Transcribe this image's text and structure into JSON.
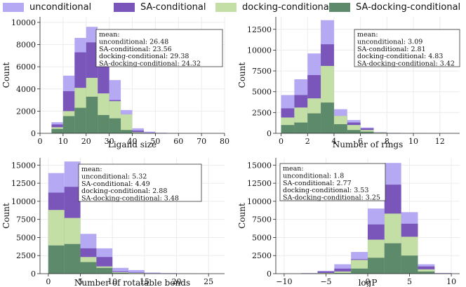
{
  "legend": {
    "items": [
      {
        "label": "unconditional",
        "color": "#b4a9f2"
      },
      {
        "label": "SA-conditional",
        "color": "#7a56bb"
      },
      {
        "label": "docking-conditional",
        "color": "#c4dfa6"
      },
      {
        "label": "SA-docking-conditional",
        "color": "#5e8a6c"
      }
    ]
  },
  "chart_data": [
    {
      "type": "bar",
      "title": "",
      "xlabel": "Ligand size",
      "ylabel": "Count",
      "xlim": [
        0,
        80
      ],
      "ylim": [
        0,
        10500
      ],
      "xticks": [
        0,
        10,
        20,
        30,
        40,
        50,
        60,
        70,
        80
      ],
      "yticks": [
        0,
        2000,
        4000,
        6000,
        8000,
        10000
      ],
      "bin_edges": [
        5,
        10,
        15,
        20,
        25,
        30,
        35,
        40,
        45,
        50,
        55,
        60,
        65
      ],
      "series": [
        {
          "name": "unconditional",
          "values": [
            1000,
            5200,
            8600,
            9600,
            7500,
            4800,
            2100,
            450,
            150,
            50,
            20,
            10
          ]
        },
        {
          "name": "SA-conditional",
          "values": [
            800,
            3800,
            7300,
            8200,
            7000,
            3000,
            800,
            250,
            50,
            20,
            5,
            0
          ]
        },
        {
          "name": "docking-conditional",
          "values": [
            550,
            2000,
            4100,
            5000,
            3600,
            2900,
            1700,
            100,
            20,
            5,
            0,
            0
          ]
        },
        {
          "name": "SA-docking-conditional",
          "values": [
            400,
            1550,
            2300,
            3300,
            1650,
            1350,
            300,
            50,
            10,
            0,
            0,
            0
          ]
        }
      ],
      "annotation": {
        "title": "mean:",
        "lines": [
          "unconditional: 26.48",
          "SA-conditional: 23.56",
          "docking-conditional: 29.38",
          "SA-docking-conditional: 24.32"
        ]
      }
    },
    {
      "type": "bar",
      "title": "",
      "xlabel": "Number of rings",
      "ylabel": "Count",
      "xlim": [
        -0.4,
        13.5
      ],
      "ylim": [
        0,
        14000
      ],
      "xticks": [
        0,
        2,
        4,
        6,
        8,
        10,
        12
      ],
      "yticks": [
        0,
        2500,
        5000,
        7500,
        10000,
        12500
      ],
      "bin_edges": [
        0,
        1,
        2,
        3,
        4,
        5,
        6,
        7,
        8,
        9,
        10,
        11,
        12,
        13
      ],
      "series": [
        {
          "name": "unconditional",
          "values": [
            4600,
            6500,
            9600,
            13600,
            2900,
            1600,
            700,
            150,
            60,
            20,
            10,
            5,
            0
          ]
        },
        {
          "name": "SA-conditional",
          "values": [
            3000,
            4600,
            7000,
            10700,
            2100,
            1300,
            600,
            100,
            40,
            10,
            5,
            0,
            0
          ]
        },
        {
          "name": "docking-conditional",
          "values": [
            1900,
            3100,
            4200,
            8100,
            2100,
            1000,
            400,
            100,
            30,
            10,
            0,
            0,
            0
          ]
        },
        {
          "name": "SA-docking-conditional",
          "values": [
            1000,
            1300,
            2400,
            3700,
            1100,
            400,
            200,
            50,
            10,
            0,
            0,
            0,
            0
          ]
        }
      ],
      "annotation": {
        "title": "mean:",
        "lines": [
          "unconditional: 3.09",
          "SA-conditional: 2.81",
          "docking-conditional: 4.83",
          "SA-docking-conditional: 3.42"
        ]
      }
    },
    {
      "type": "bar",
      "title": "",
      "xlabel": "Number of rotatable bonds",
      "ylabel": "Count",
      "xlim": [
        -1.3,
        27.5
      ],
      "ylim": [
        0,
        16000
      ],
      "xticks": [
        0,
        5,
        10,
        15,
        20,
        25
      ],
      "yticks": [
        0,
        2500,
        5000,
        7500,
        10000,
        12500,
        15000
      ],
      "bin_edges": [
        0,
        2.5,
        5,
        7.5,
        10,
        12.5,
        15,
        17.5,
        20,
        22.5,
        25
      ],
      "series": [
        {
          "name": "unconditional",
          "values": [
            13900,
            15500,
            5500,
            3500,
            800,
            500,
            150,
            80,
            30,
            10
          ]
        },
        {
          "name": "SA-conditional",
          "values": [
            11200,
            12000,
            3500,
            2300,
            300,
            150,
            50,
            20,
            5,
            0
          ]
        },
        {
          "name": "docking-conditional",
          "values": [
            8800,
            7700,
            2300,
            1000,
            200,
            100,
            40,
            10,
            0,
            0
          ]
        },
        {
          "name": "SA-docking-conditional",
          "values": [
            3900,
            4100,
            1600,
            800,
            100,
            50,
            10,
            5,
            0,
            0
          ]
        }
      ],
      "annotation": {
        "title": "mean:",
        "lines": [
          "unconditional: 5.32",
          "SA-conditional: 4.49",
          "docking-conditional: 2.88",
          "SA-docking-conditional: 3.48"
        ]
      }
    },
    {
      "type": "bar",
      "title": "",
      "xlabel": "logP",
      "ylabel": "Count",
      "xlim": [
        -11,
        11
      ],
      "ylim": [
        0,
        16000
      ],
      "xticks": [
        -10,
        -5,
        0,
        5,
        10
      ],
      "yticks": [
        0,
        2500,
        5000,
        7500,
        10000,
        12500,
        15000
      ],
      "bin_edges": [
        -8,
        -6,
        -4,
        -2,
        0,
        2,
        4,
        6,
        8,
        10
      ],
      "series": [
        {
          "name": "unconditional",
          "values": [
            80,
            400,
            1300,
            3000,
            9000,
            15300,
            8500,
            1300,
            100
          ]
        },
        {
          "name": "SA-conditional",
          "values": [
            50,
            300,
            700,
            2000,
            6800,
            12300,
            6900,
            1000,
            50
          ]
        },
        {
          "name": "docking-conditional",
          "values": [
            20,
            100,
            300,
            1900,
            4700,
            8300,
            5100,
            600,
            20
          ]
        },
        {
          "name": "SA-docking-conditional",
          "values": [
            10,
            50,
            100,
            700,
            2200,
            4200,
            2500,
            300,
            10
          ]
        }
      ],
      "annotation": {
        "title": "mean:",
        "lines": [
          "unconditional: 1.8",
          "SA-conditional: 2.77",
          "docking-conditional: 3.53",
          "SA-docking-conditional: 3.25"
        ]
      }
    }
  ]
}
